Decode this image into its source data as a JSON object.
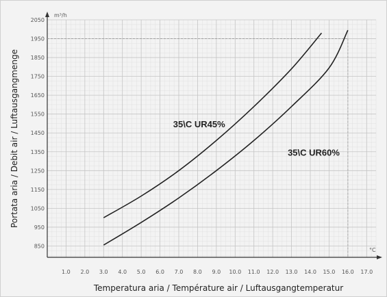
{
  "chart_data": {
    "type": "line",
    "xlabel": "Temperatura aria  / Température air / Luftausgangtemperatur",
    "ylabel": "Portata aria / Debit air  / Luftausgangmenge",
    "x_unit": "°C",
    "y_unit": "m³/h",
    "xlim": [
      0,
      175
    ],
    "ylim": [
      790,
      2050
    ],
    "x_ticks": [
      "1.0",
      "2.0",
      "3.0",
      "4.0",
      "5.0",
      "6.0",
      "7.0",
      "8.0",
      "9.0",
      "10.0",
      "11.0",
      "12.0",
      "13.0",
      "14.0",
      "15.0",
      "16.0",
      "17.0"
    ],
    "x_tick_values": [
      10,
      20,
      30,
      40,
      50,
      60,
      70,
      80,
      90,
      100,
      110,
      120,
      130,
      140,
      150,
      160,
      170
    ],
    "y_ticks": [
      "850",
      "950",
      "1050",
      "1150",
      "1250",
      "1350",
      "1450",
      "1550",
      "1650",
      "1750",
      "1850",
      "1950",
      "2050"
    ],
    "y_tick_values": [
      850,
      950,
      1050,
      1150,
      1250,
      1350,
      1450,
      1550,
      1650,
      1750,
      1850,
      1950,
      2050
    ],
    "grid": true,
    "series": [
      {
        "name": "35\\C UR45%",
        "x": [
          30,
          50,
          70,
          90,
          110,
          130,
          146
        ],
        "y": [
          1000,
          1115,
          1250,
          1410,
          1590,
          1790,
          1980
        ]
      },
      {
        "name": "35\\C UR60%",
        "x": [
          30,
          50,
          70,
          90,
          110,
          130,
          150,
          160
        ],
        "y": [
          855,
          975,
          1105,
          1250,
          1410,
          1590,
          1795,
          1995
        ]
      }
    ]
  }
}
